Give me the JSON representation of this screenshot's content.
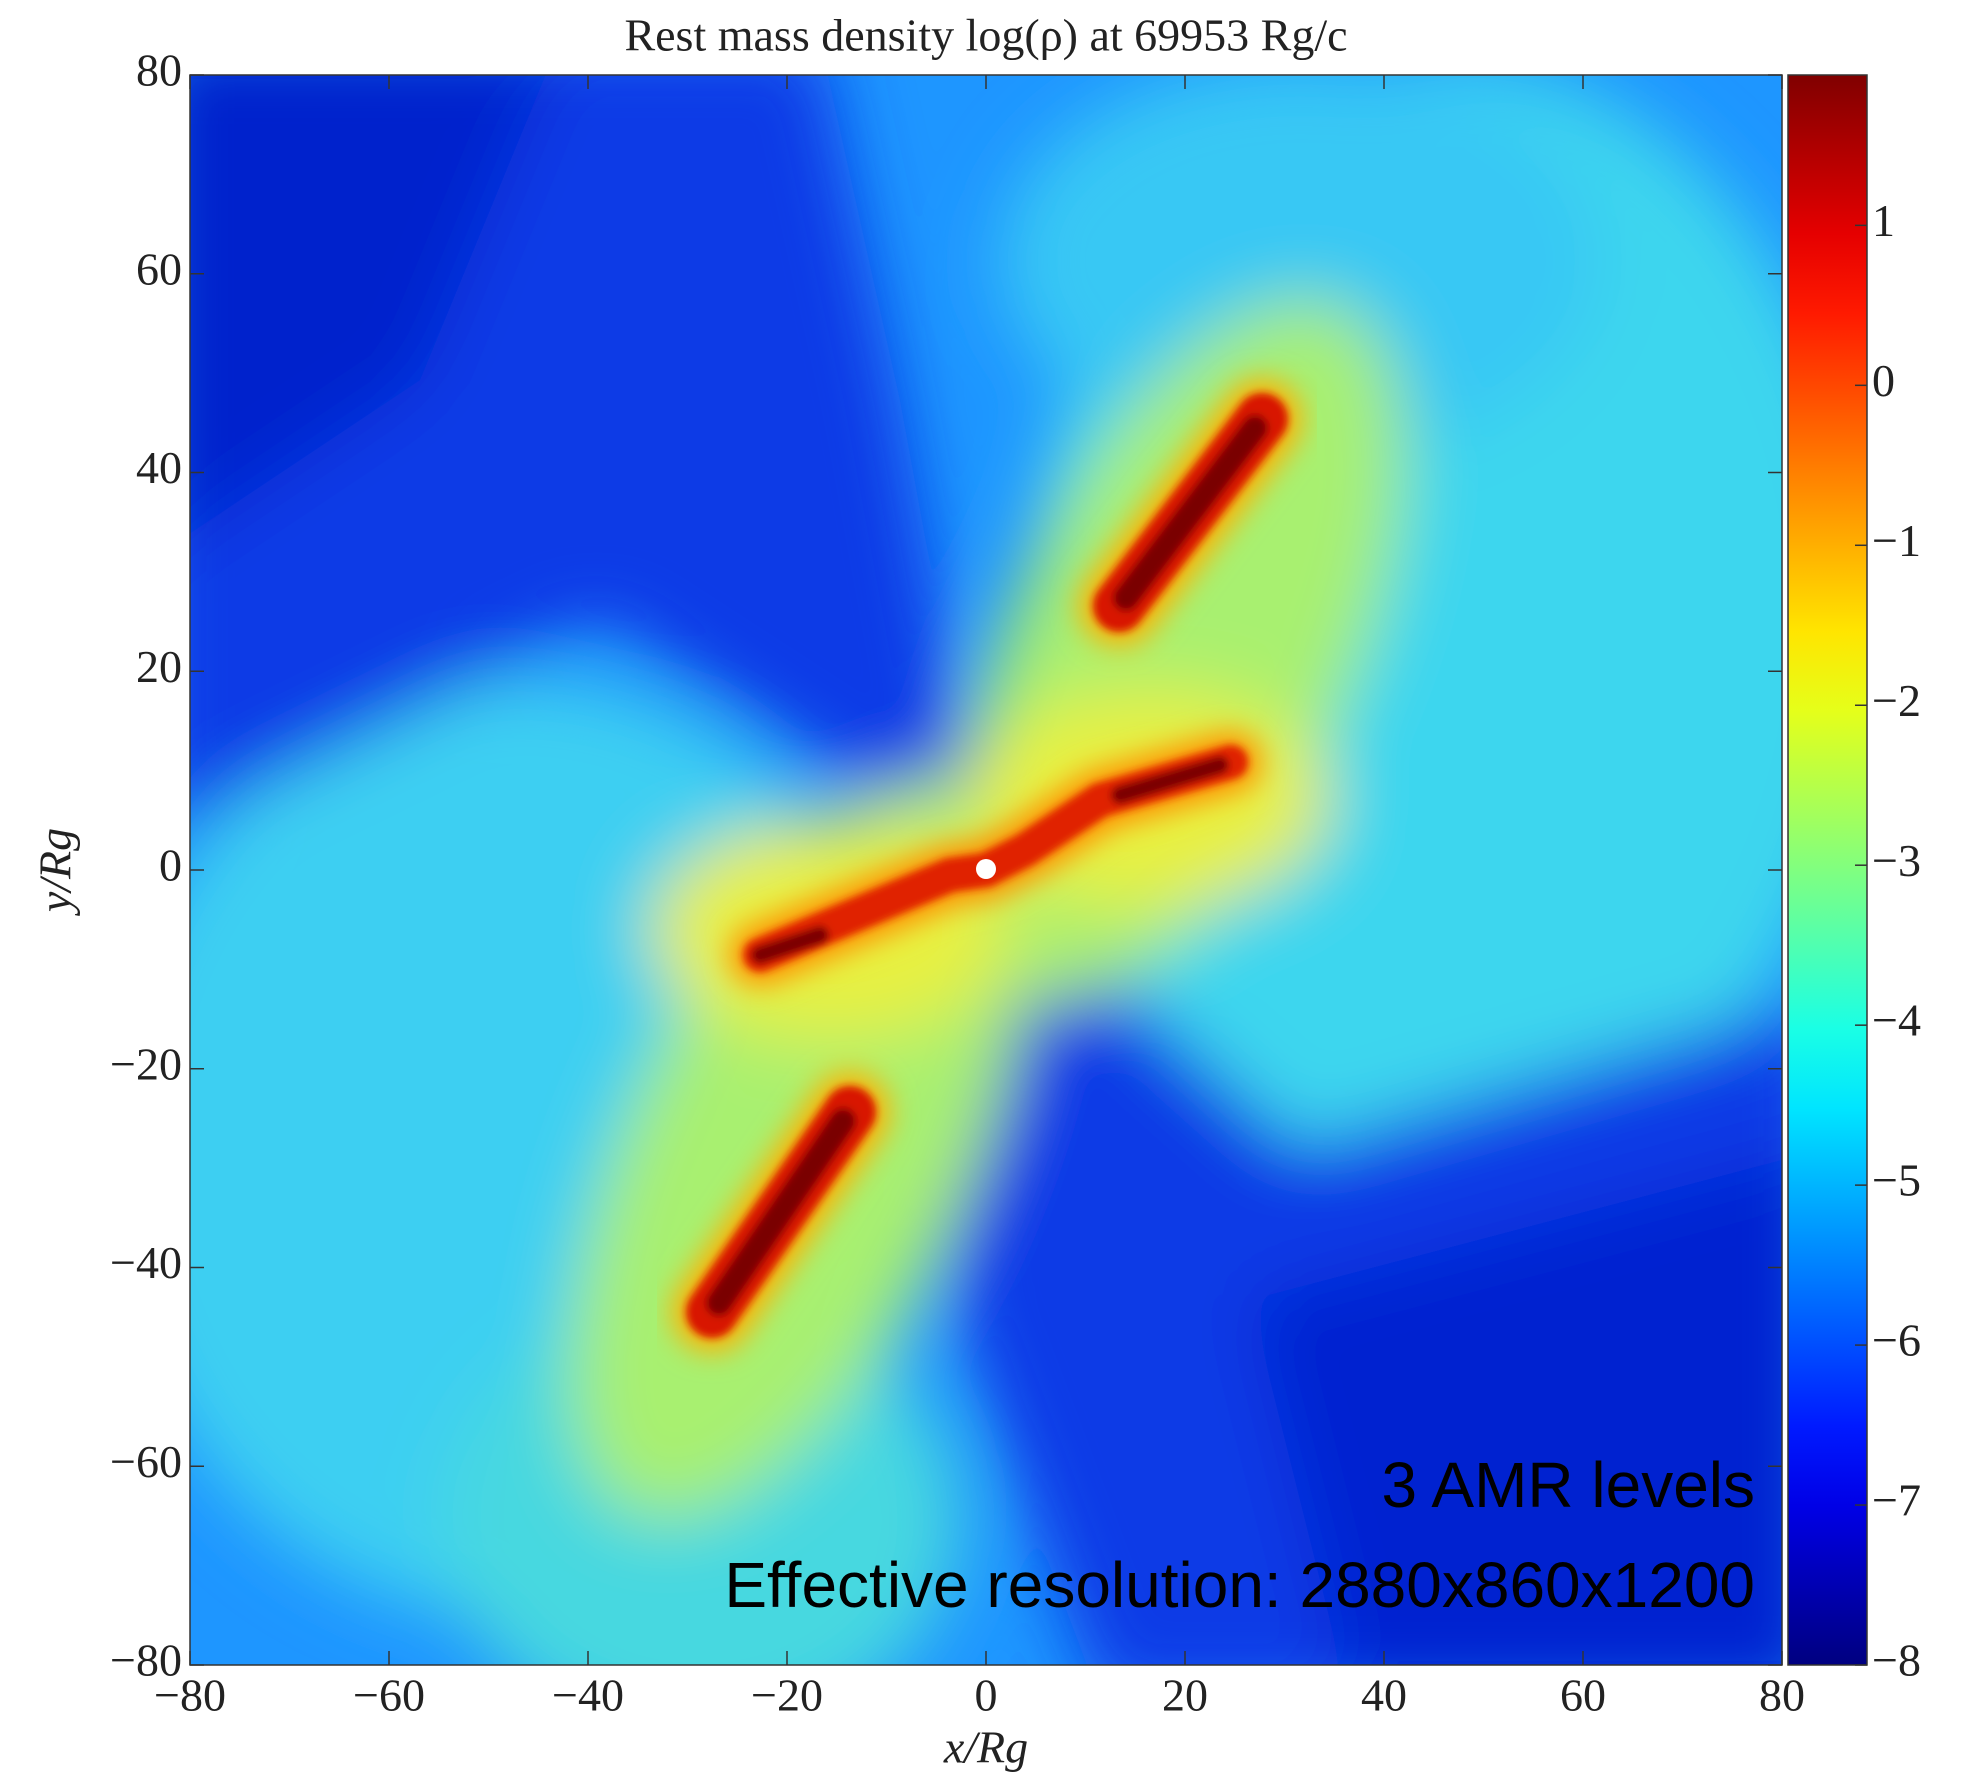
{
  "chart_data": {
    "type": "heatmap",
    "title": "Rest mass density log(ρ) at 69953 Rg/c",
    "xlabel": "x/Rg",
    "ylabel": "y/Rg",
    "xlim": [
      -80,
      80
    ],
    "ylim": [
      -80,
      80
    ],
    "xticks": [
      {
        "value": -80,
        "label": "−80"
      },
      {
        "value": -60,
        "label": "−60"
      },
      {
        "value": -40,
        "label": "−40"
      },
      {
        "value": -20,
        "label": "−20"
      },
      0,
      20,
      40,
      60,
      80
    ],
    "yticks": [
      {
        "value": -80,
        "label": "−80"
      },
      {
        "value": -60,
        "label": "−60"
      },
      {
        "value": -40,
        "label": "−40"
      },
      {
        "value": -20,
        "label": "−20"
      },
      0,
      20,
      40,
      60,
      80
    ],
    "colorbar": {
      "colormap": "jet",
      "lim": [
        -8,
        1.94
      ],
      "ticks": [
        {
          "value": -8,
          "label": "−8"
        },
        {
          "value": -7,
          "label": "−7"
        },
        {
          "value": -6,
          "label": "−6"
        },
        {
          "value": -5,
          "label": "−5"
        },
        {
          "value": -4,
          "label": "−4"
        },
        {
          "value": -3,
          "label": "−3"
        },
        {
          "value": -2,
          "label": "−2"
        },
        {
          "value": -1,
          "label": "−1"
        },
        0,
        1
      ]
    },
    "annotations": [
      "3 AMR levels",
      "Effective resolution: 2880x860x1200"
    ]
  }
}
